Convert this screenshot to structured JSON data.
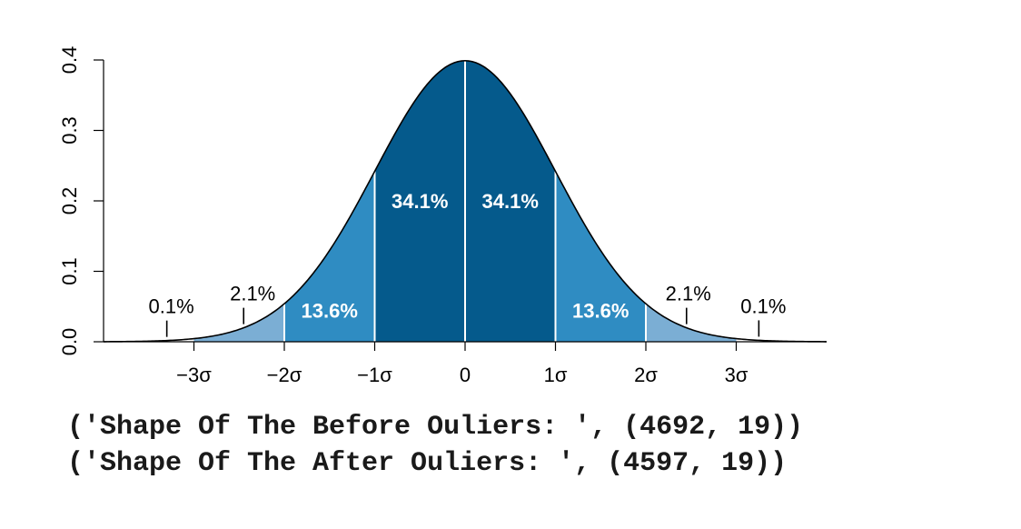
{
  "chart_data": {
    "type": "area",
    "ylim": [
      0,
      0.4
    ],
    "xlim": [
      -4,
      4
    ],
    "y_ticks": [
      {
        "value": 0.0,
        "label": "0.0"
      },
      {
        "value": 0.1,
        "label": "0.1"
      },
      {
        "value": 0.2,
        "label": "0.2"
      },
      {
        "value": 0.3,
        "label": "0.3"
      },
      {
        "value": 0.4,
        "label": "0.4"
      }
    ],
    "x_ticks": [
      {
        "value": -3,
        "label": "−3σ"
      },
      {
        "value": -2,
        "label": "−2σ"
      },
      {
        "value": -1,
        "label": "−1σ"
      },
      {
        "value": 0,
        "label": "0"
      },
      {
        "value": 1,
        "label": "1σ"
      },
      {
        "value": 2,
        "label": "2σ"
      },
      {
        "value": 3,
        "label": "3σ"
      }
    ],
    "regions": [
      {
        "from": -4,
        "to": -3,
        "color": "#ffffff"
      },
      {
        "from": -3,
        "to": -2,
        "color": "#7baed4"
      },
      {
        "from": -2,
        "to": -1,
        "color": "#2f8cc2"
      },
      {
        "from": -1,
        "to": 0,
        "color": "#055a8c"
      },
      {
        "from": 0,
        "to": 1,
        "color": "#055a8c"
      },
      {
        "from": 1,
        "to": 2,
        "color": "#2f8cc2"
      },
      {
        "from": 2,
        "to": 3,
        "color": "#7baed4"
      },
      {
        "from": 3,
        "to": 4,
        "color": "#ffffff"
      }
    ],
    "inner_labels": [
      {
        "x": -0.5,
        "y": 0.19,
        "text": "34.1%"
      },
      {
        "x": 0.5,
        "y": 0.19,
        "text": "34.1%"
      },
      {
        "x": -1.5,
        "y": 0.034,
        "text": "13.6%"
      },
      {
        "x": 1.5,
        "y": 0.034,
        "text": "13.6%"
      }
    ],
    "callouts": [
      {
        "x": -3.3,
        "label_x": -3.25,
        "text": "0.1%"
      },
      {
        "x": -2.45,
        "label_x": -2.35,
        "text": "2.1%"
      },
      {
        "x": 2.45,
        "label_x": 2.47,
        "text": "2.1%"
      },
      {
        "x": 3.25,
        "label_x": 3.3,
        "text": "0.1%"
      }
    ],
    "colors": {
      "curve": "#000000",
      "divider": "#ffffff",
      "inner_label": "#ffffff",
      "callout": "#000000"
    }
  },
  "output": {
    "lines": [
      "('Shape Of The Before Ouliers: ', (4692, 19))",
      "('Shape Of The After Ouliers: ', (4597, 19))"
    ]
  }
}
